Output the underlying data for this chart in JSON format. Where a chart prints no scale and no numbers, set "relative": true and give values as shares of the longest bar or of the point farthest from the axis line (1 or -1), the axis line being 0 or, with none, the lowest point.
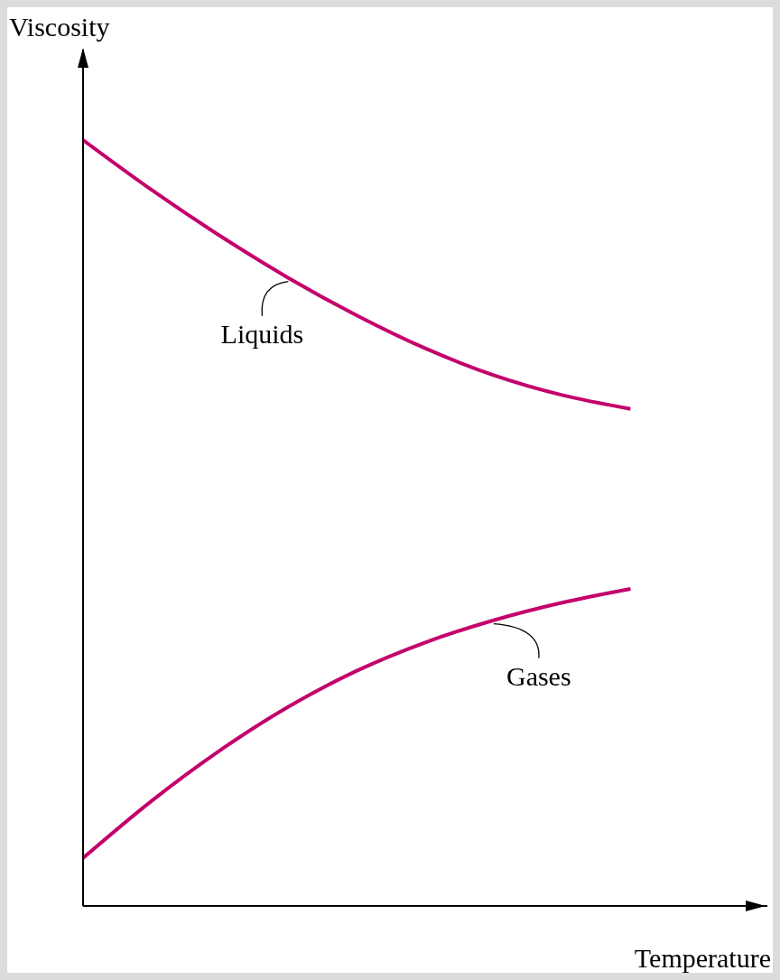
{
  "chart_data": {
    "type": "line",
    "relative": true,
    "xlabel": "Temperature",
    "ylabel": "Viscosity",
    "legend": false,
    "grid": false,
    "marker": "none",
    "line_style": "solid",
    "categories": [
      null,
      null,
      null,
      null,
      null,
      null,
      null,
      null,
      null,
      null,
      null
    ],
    "series": [
      {
        "name": "Liquids",
        "color": "#c4006c",
        "values": [
          1.0,
          0.935,
          0.875,
          0.82,
          0.771,
          0.728,
          0.693,
          0.667,
          0.649,
          null,
          null
        ]
      },
      {
        "name": "Gases",
        "color": "#c4006c",
        "values": [
          0.0625,
          0.137,
          0.203,
          0.26,
          0.307,
          0.344,
          0.373,
          0.396,
          0.414,
          null,
          null
        ]
      }
    ]
  }
}
